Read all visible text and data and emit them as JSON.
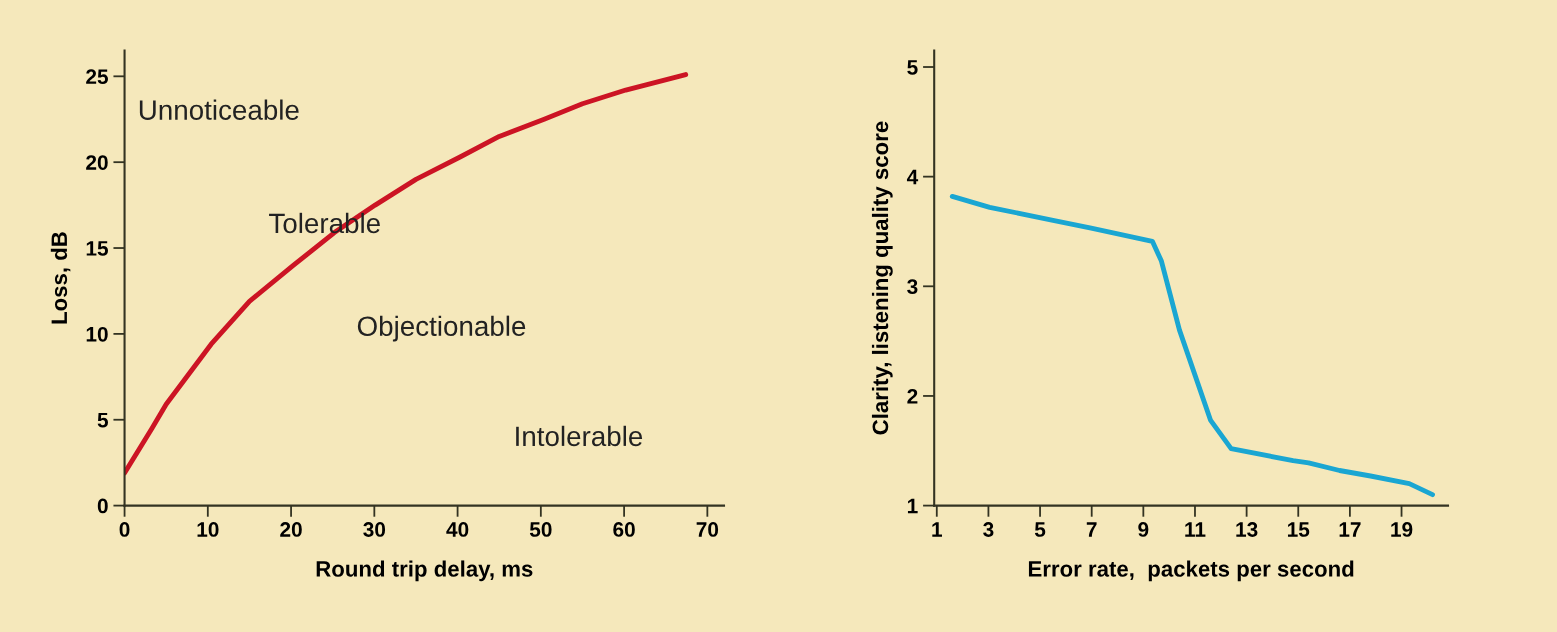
{
  "chart_data": [
    {
      "type": "line",
      "xlabel": "Round trip delay, ms",
      "ylabel": "Loss, dB",
      "xlim": [
        0,
        72
      ],
      "ylim": [
        0,
        26.5
      ],
      "xticks": [
        0,
        10,
        20,
        30,
        40,
        50,
        60,
        70
      ],
      "yticks": [
        0,
        5,
        10,
        15,
        20,
        25
      ],
      "grid": false,
      "legend": false,
      "series": [
        {
          "color": "#cc1424",
          "x": [
            0,
            3.3,
            5,
            10.4,
            15,
            20.3,
            25.2,
            30.1,
            35,
            40.3,
            45,
            50.4,
            55,
            60.2,
            67.4
          ],
          "values": [
            1.9,
            4.5,
            5.9,
            9.4,
            11.9,
            14.0,
            15.9,
            17.5,
            19.0,
            20.3,
            21.5,
            22.5,
            23.4,
            24.2,
            25.1
          ]
        }
      ],
      "annotations": [
        "Unnoticeable",
        "Tolerable",
        "Objectionable",
        "Intolerable"
      ]
    },
    {
      "type": "line",
      "xlabel": "Error rate,  packets per second",
      "ylabel": "Clarity, listening quality score",
      "xlim": [
        0.9,
        20.8
      ],
      "ylim": [
        1,
        5.15
      ],
      "xticks": [
        1,
        3,
        5,
        7,
        9,
        11,
        13,
        15,
        17,
        19
      ],
      "yticks": [
        1,
        2,
        3,
        4,
        5
      ],
      "grid": false,
      "legend": false,
      "series": [
        {
          "color": "#1aa6d2",
          "x": [
            1.6,
            3.05,
            5.55,
            6.98,
            9.35,
            9.7,
            10.4,
            11.6,
            12.4,
            14.8,
            15.4,
            16.6,
            17.8,
            19.3,
            20.2
          ],
          "values": [
            3.82,
            3.72,
            3.6,
            3.53,
            3.41,
            3.23,
            2.6,
            1.78,
            1.52,
            1.41,
            1.39,
            1.32,
            1.27,
            1.2,
            1.1
          ]
        }
      ]
    }
  ]
}
